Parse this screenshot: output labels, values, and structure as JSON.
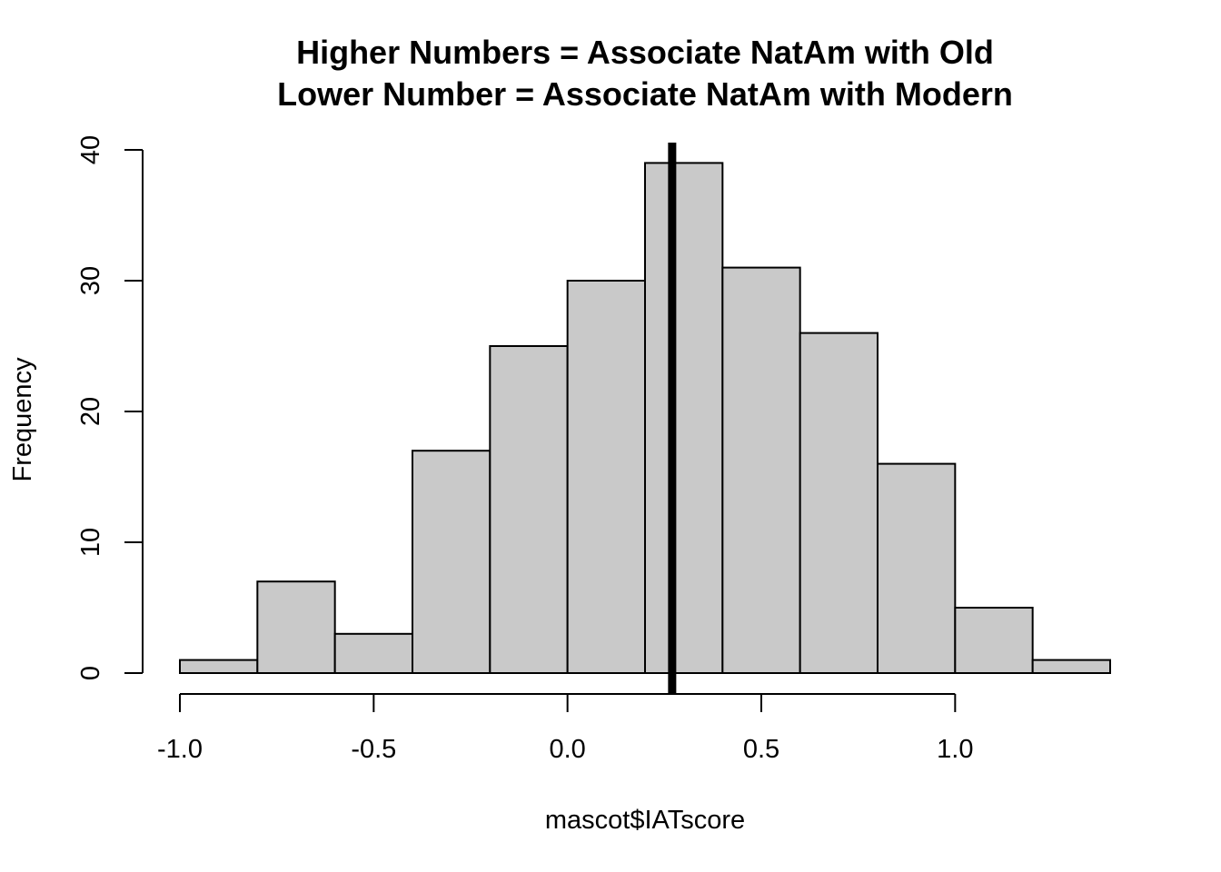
{
  "chart_data": {
    "type": "bar",
    "title_lines": [
      "Higher Numbers = Associate NatAm with Old",
      "Lower Number = Associate NatAm with Modern"
    ],
    "xlabel": "mascot$IATscore",
    "ylabel": "Frequency",
    "bins": [
      [
        -1.0,
        -0.8
      ],
      [
        -0.8,
        -0.6
      ],
      [
        -0.6,
        -0.4
      ],
      [
        -0.4,
        -0.2
      ],
      [
        -0.2,
        0.0
      ],
      [
        0.0,
        0.2
      ],
      [
        0.2,
        0.4
      ],
      [
        0.4,
        0.6
      ],
      [
        0.6,
        0.8
      ],
      [
        0.8,
        1.0
      ],
      [
        1.0,
        1.2
      ],
      [
        1.2,
        1.4
      ]
    ],
    "values": [
      1,
      7,
      3,
      17,
      25,
      30,
      39,
      31,
      26,
      16,
      5,
      1
    ],
    "xlim": [
      -1.0,
      1.4
    ],
    "ylim": [
      0,
      40
    ],
    "x_ticks": [
      -1.0,
      -0.5,
      0.0,
      0.5,
      1.0
    ],
    "x_tick_labels": [
      "-1.0",
      "-0.5",
      "0.0",
      "0.5",
      "1.0"
    ],
    "y_ticks": [
      0,
      10,
      20,
      30,
      40
    ],
    "y_tick_labels": [
      "0",
      "10",
      "20",
      "30",
      "40"
    ],
    "reference_line": {
      "x": 0.27,
      "color": "#000000"
    },
    "bar_color": "#c9c9c9",
    "grid": false,
    "legend": "none"
  }
}
